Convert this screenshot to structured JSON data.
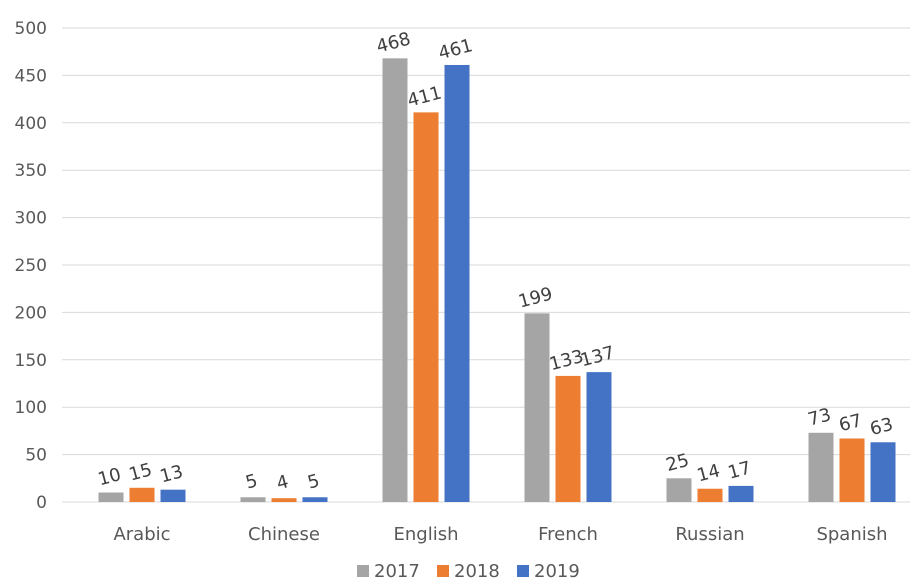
{
  "chart_data": {
    "type": "bar",
    "title": "",
    "xlabel": "",
    "ylabel": "",
    "categories": [
      "Arabic",
      "Chinese",
      "English",
      "French",
      "Russian",
      "Spanish"
    ],
    "series": [
      {
        "name": "2017",
        "color": "#a5a5a5",
        "values": [
          10,
          5,
          468,
          199,
          25,
          73
        ]
      },
      {
        "name": "2018",
        "color": "#ed7d31",
        "values": [
          15,
          4,
          411,
          133,
          14,
          67
        ]
      },
      {
        "name": "2019",
        "color": "#4472c4",
        "values": [
          13,
          5,
          461,
          137,
          17,
          63
        ]
      }
    ],
    "ylim": [
      0,
      500
    ],
    "yticks": [
      0,
      50,
      100,
      150,
      200,
      250,
      300,
      350,
      400,
      450,
      500
    ],
    "grid": true,
    "legend": "bottom",
    "data_labels": true
  }
}
